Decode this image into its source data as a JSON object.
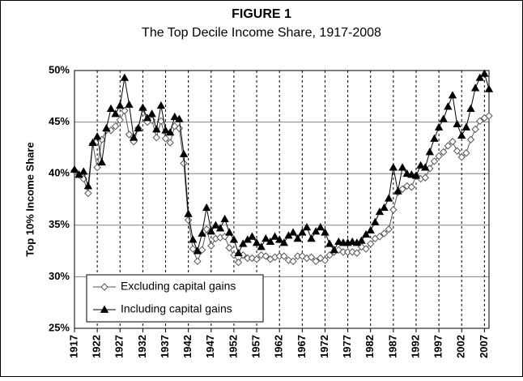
{
  "chart_data": {
    "type": "line",
    "title": "FIGURE 1",
    "subtitle": "The Top Decile Income Share, 1917-2008",
    "y_label": "Top 10% Income Share",
    "x": [
      1917,
      1918,
      1919,
      1920,
      1921,
      1922,
      1923,
      1924,
      1925,
      1926,
      1927,
      1928,
      1929,
      1930,
      1931,
      1932,
      1933,
      1934,
      1935,
      1936,
      1937,
      1938,
      1939,
      1940,
      1941,
      1942,
      1943,
      1944,
      1945,
      1946,
      1947,
      1948,
      1949,
      1950,
      1951,
      1952,
      1953,
      1954,
      1955,
      1956,
      1957,
      1958,
      1959,
      1960,
      1961,
      1962,
      1963,
      1964,
      1965,
      1966,
      1967,
      1968,
      1969,
      1970,
      1971,
      1972,
      1973,
      1974,
      1975,
      1976,
      1977,
      1978,
      1979,
      1980,
      1981,
      1982,
      1983,
      1984,
      1985,
      1986,
      1987,
      1988,
      1989,
      1990,
      1991,
      1992,
      1993,
      1994,
      1995,
      1996,
      1997,
      1998,
      1999,
      2000,
      2001,
      2002,
      2003,
      2004,
      2005,
      2006,
      2007,
      2008
    ],
    "series": [
      {
        "name": "Excluding capital gains",
        "color": "#555555",
        "marker": "diamond",
        "values": [
          40.3,
          39.9,
          39.5,
          38.1,
          42.9,
          40.6,
          43.3,
          44.2,
          44.2,
          44.6,
          45.2,
          46.1,
          43.8,
          43.1,
          44.4,
          46.3,
          45.0,
          45.2,
          43.5,
          45.1,
          43.4,
          43.0,
          44.6,
          44.4,
          41.0,
          35.5,
          32.7,
          31.5,
          32.6,
          34.6,
          33.0,
          33.7,
          33.8,
          33.9,
          32.8,
          32.1,
          31.4,
          32.1,
          31.8,
          31.8,
          31.7,
          32.1,
          32.0,
          31.7,
          31.9,
          32.0,
          32.0,
          31.6,
          31.5,
          32.0,
          32.0,
          31.8,
          31.9,
          31.5,
          31.8,
          31.6,
          32.1,
          32.4,
          32.6,
          32.4,
          32.4,
          32.4,
          32.3,
          32.9,
          32.7,
          33.2,
          33.7,
          33.9,
          34.2,
          34.6,
          36.5,
          38.2,
          38.5,
          38.8,
          38.7,
          39.8,
          39.5,
          39.6,
          40.5,
          41.2,
          41.7,
          42.1,
          42.7,
          43.1,
          42.2,
          41.6,
          42.0,
          43.3,
          44.3,
          45.1,
          45.4,
          45.6
        ]
      },
      {
        "name": "Including capital gains",
        "color": "#000000",
        "marker": "triangle",
        "values": [
          40.4,
          39.9,
          40.2,
          38.8,
          43.0,
          43.6,
          41.1,
          44.4,
          46.3,
          45.8,
          46.6,
          49.3,
          46.7,
          43.5,
          44.4,
          46.4,
          45.4,
          45.8,
          44.3,
          46.6,
          44.2,
          44.0,
          45.5,
          45.3,
          41.9,
          36.1,
          33.6,
          32.5,
          34.2,
          36.7,
          34.4,
          35.0,
          34.7,
          35.6,
          34.3,
          33.6,
          32.3,
          33.2,
          33.6,
          33.9,
          33.3,
          32.9,
          33.7,
          33.4,
          33.9,
          33.6,
          33.3,
          34.0,
          34.3,
          33.7,
          34.3,
          34.8,
          33.7,
          34.4,
          34.8,
          34.3,
          33.2,
          32.6,
          33.4,
          33.3,
          33.3,
          33.4,
          33.3,
          33.5,
          34.1,
          34.5,
          35.3,
          36.3,
          36.7,
          37.6,
          40.6,
          38.3,
          40.6,
          40.0,
          39.9,
          39.8,
          40.8,
          40.6,
          42.1,
          43.4,
          44.5,
          45.3,
          46.5,
          47.6,
          44.8,
          43.7,
          44.5,
          46.3,
          48.3,
          49.3,
          49.7,
          48.2
        ]
      }
    ],
    "xlim": [
      1917,
      2008
    ],
    "xticks": [
      1917,
      1922,
      1927,
      1932,
      1937,
      1942,
      1947,
      1952,
      1957,
      1962,
      1967,
      1972,
      1977,
      1982,
      1987,
      1992,
      1997,
      2002,
      2007
    ],
    "ylim": [
      25,
      50
    ],
    "yticks": [
      {
        "value": 25,
        "label": "25%"
      },
      {
        "value": 30,
        "label": "30%"
      },
      {
        "value": 35,
        "label": "35%"
      },
      {
        "value": 40,
        "label": "40%"
      },
      {
        "value": 45,
        "label": "45%"
      },
      {
        "value": 50,
        "label": "50%"
      }
    ],
    "grid": true,
    "legend": "lower left"
  }
}
